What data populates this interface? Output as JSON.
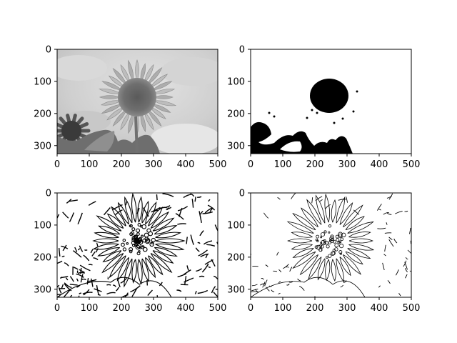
{
  "chart_data": [
    {
      "type": "heatmap",
      "content": "grayscale photo: sunflower in front of a cloudy sky, a second sunflower at the lower left",
      "colormap": "gray",
      "xlim": [
        0,
        500
      ],
      "ylim": [
        325,
        0
      ],
      "xticks": [
        0,
        100,
        200,
        300,
        400,
        500
      ],
      "yticks": [
        0,
        100,
        200,
        300
      ],
      "grid": false
    },
    {
      "type": "heatmap",
      "content": "binary threshold: black flower center and dark foliage on a white background",
      "colormap": "gray",
      "xlim": [
        0,
        500
      ],
      "ylim": [
        325,
        0
      ],
      "xticks": [
        0,
        100,
        200,
        300,
        400,
        500
      ],
      "yticks": [
        0,
        100,
        200,
        300
      ],
      "grid": false
    },
    {
      "type": "heatmap",
      "content": "binary edge map with dense contours of petals, flower head and clouds",
      "colormap": "gray",
      "xlim": [
        0,
        500
      ],
      "ylim": [
        325,
        0
      ],
      "xticks": [
        0,
        100,
        200,
        300,
        400,
        500
      ],
      "yticks": [
        0,
        100,
        200,
        300
      ],
      "grid": false
    },
    {
      "type": "heatmap",
      "content": "binary edge map with thinner, sparser contours of the sunflower",
      "colormap": "gray",
      "xlim": [
        0,
        500
      ],
      "ylim": [
        325,
        0
      ],
      "xticks": [
        0,
        100,
        200,
        300,
        400,
        500
      ],
      "yticks": [
        0,
        100,
        200,
        300
      ],
      "grid": false
    }
  ]
}
